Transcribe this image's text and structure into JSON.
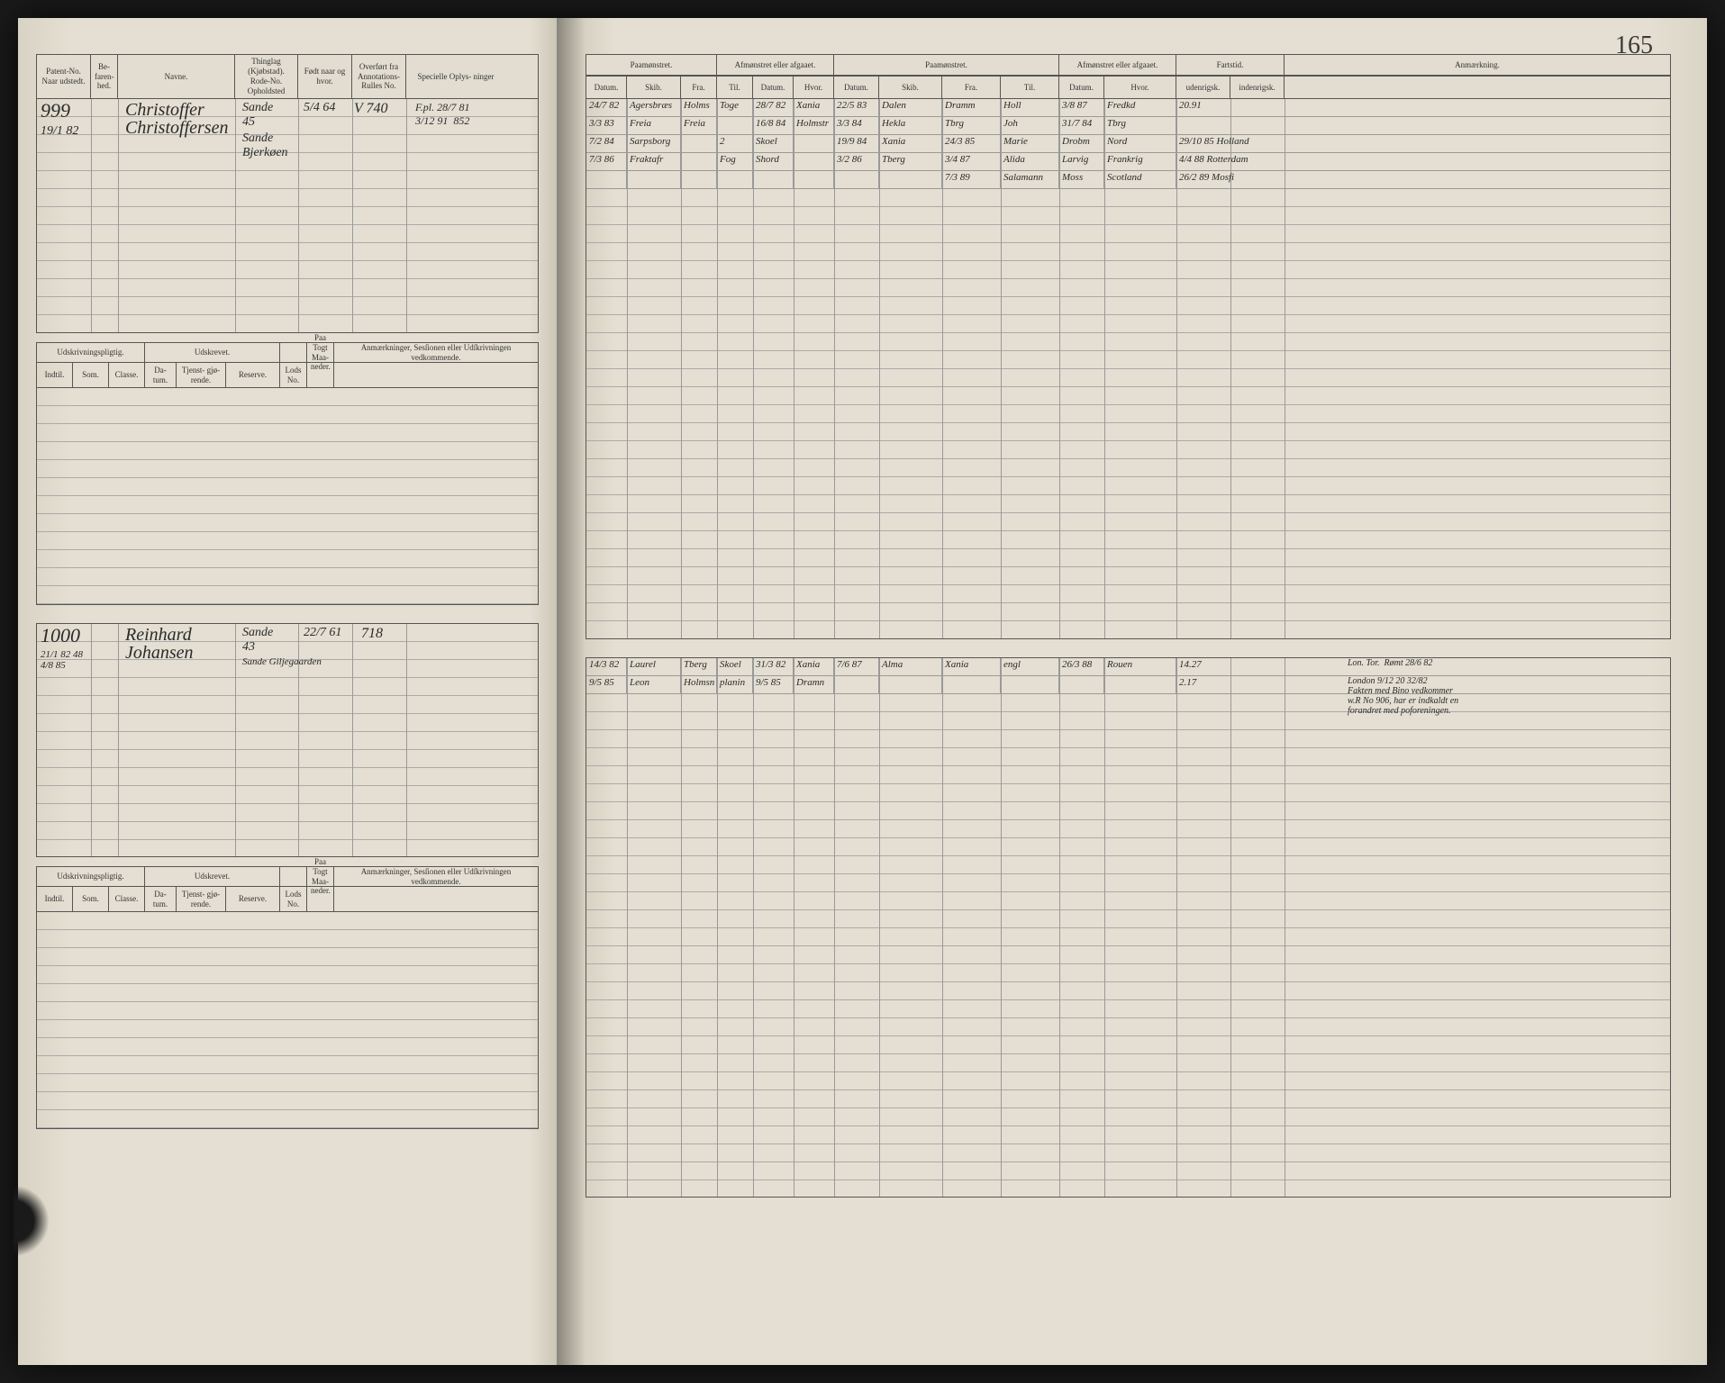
{
  "page_number": "165",
  "colors": {
    "paper": "#e4dfd2",
    "ink": "#2a2a2a",
    "rule": "#999",
    "border": "#555"
  },
  "left_page": {
    "headers": {
      "patent": "Patent-No.\nNaar udstedt.",
      "befarenhed": "Be-\nfaren-\nhed.",
      "navne": "Navne.",
      "thinglag": "Thinglag\n(Kjøbstad).\nRode-No.\nOpholdsted",
      "fodt": "Født naar\nog hvor.",
      "overfort": "Overført fra\nAnnotations-\nRulles No.",
      "specielle": "Specielle Oplys-\nninger",
      "udskrivning": "Udskrivningspligtig.",
      "udskrevet": "Udskrevet.",
      "indtil": "Indtil.",
      "som": "Som.",
      "classe": "Classe.",
      "datum": "Da-\ntum.",
      "tjenstgjorende": "Tjenst-\ngjø-\nrende.",
      "reserve": "Reserve.",
      "lodno": "Lods\nNo.",
      "paatogt": "Paa\nTogt\nMaa-\nneder.",
      "anmaerkninger": "Anmærkninger,\nSesſionen eller Udſkrivningen vedkommende."
    },
    "entries": [
      {
        "patent_no": "999",
        "date_issued": "19/1 82",
        "name": "Christoffer Christoffersen",
        "thinglag": "Sande\n45",
        "birthplace": "Sande\nBjerkøen",
        "birth_date": "5/4 64",
        "overfort": "V 740",
        "specielle": "F.pl. 28/7 81\n3/12 91  852",
        "befarenhed": ""
      },
      {
        "patent_no": "1000",
        "date_issued": "21/1 82 48\n4/8 85",
        "name": "Reinhard Johansen",
        "thinglag": "Sande\n43",
        "birthplace": "Sande\nGiljegaarden",
        "birth_date": "22/7 61",
        "overfort": "718",
        "specielle": "",
        "befarenhed": ""
      }
    ]
  },
  "right_page": {
    "headers": {
      "paamonstret": "Paamønstret.",
      "afmonstret": "Afmønstret eller\nafgaaet.",
      "datum": "Datum.",
      "skib": "Skib.",
      "fra": "Fra.",
      "til": "Til.",
      "hvor": "Hvor.",
      "fartstid": "Fartstid.",
      "udenrigsk": "udenrigsk.",
      "indenrigsk": "indenrigsk.",
      "anmaerkning": "Anmærkning."
    },
    "entries_top": [
      {
        "d1": "24/7 82",
        "s1": "Agersbræs",
        "f1": "Holms",
        "t1": "Toge",
        "d2": "28/7 82",
        "h2": "Xania",
        "d3": "22/5 83",
        "s3": "Dalen",
        "f3": "Dramm",
        "t3": "Holl",
        "d4": "3/8 87",
        "h4": "Fredkd",
        "u": "20.91"
      },
      {
        "d1": "3/3 83",
        "s1": "Freia",
        "f1": "Freia",
        "t1": "",
        "d2": "16/8 84",
        "h2": "Holmstr",
        "d3": "3/3 84",
        "s3": "Hekla",
        "f3": "Tbrg",
        "t3": "Joh",
        "d4": "31/7 84",
        "h4": "Tbrg",
        "u": ""
      },
      {
        "d1": "7/2 84",
        "s1": "Sarpsborg",
        "f1": "",
        "t1": "2",
        "d2": "Skoel",
        "h2": "",
        "d3": "19/9 84",
        "s3": "Xania",
        "f3": "24/3 85",
        "t3": "Marie",
        "d4": "Drobm",
        "h4": "Nord",
        "u": "29/10 85 Holland"
      },
      {
        "d1": "7/3 86",
        "s1": "Fraktafr",
        "f1": "",
        "t1": "Fog",
        "d2": "Shord",
        "h2": "",
        "d3": "3/2 86",
        "s3": "Tberg",
        "f3": "3/4 87",
        "t3": "Alida",
        "d4": "Larvig",
        "h4": "Frankrig",
        "u": "4/4 88 Rotterdam"
      },
      {
        "d1": "",
        "s1": "",
        "f1": "",
        "t1": "",
        "d2": "",
        "h2": "",
        "d3": "",
        "s3": "",
        "f3": "7/3 89",
        "t3": "Salamann",
        "d4": "Moss",
        "h4": "Scotland",
        "u": "26/2 89 Mosfi"
      }
    ],
    "entries_bottom": [
      {
        "d1": "14/3 82",
        "s1": "Laurel",
        "f1": "Tberg",
        "t1": "Skoel",
        "d2": "31/3 82",
        "h2": "Xania",
        "d3": "7/6 87",
        "s3": "Alma",
        "f3": "Xania",
        "t3": "engl",
        "d4": "26/3 88",
        "h4": "Rouen",
        "u": "14.27",
        "r": "Lon. Tor.  Rømt 28/6 82"
      },
      {
        "d1": "9/5 85",
        "s1": "Leon",
        "f1": "Holmsn",
        "t1": "planin",
        "d2": "9/5 85",
        "h2": "Dramn",
        "d3": "",
        "s3": "",
        "f3": "",
        "t3": "",
        "d4": "",
        "h4": "",
        "u": "2.17",
        "r": "London 9/12 20 32/82\nFakten med Bino vedkommer\nw.R No 906, har er indkaldt en\nforandret med poforeningen."
      }
    ]
  }
}
